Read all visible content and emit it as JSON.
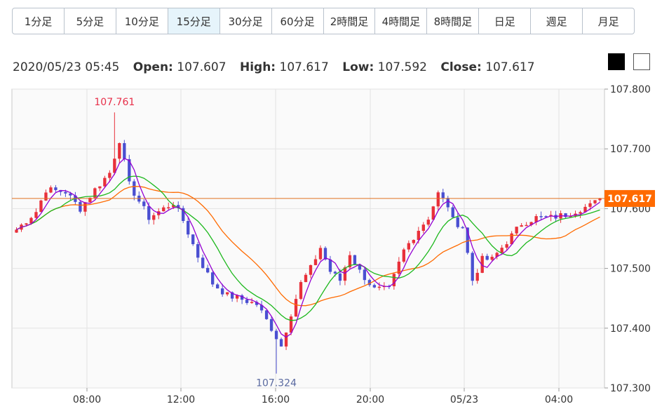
{
  "timeframe_tabs": [
    {
      "label": "1分足"
    },
    {
      "label": "5分足"
    },
    {
      "label": "10分足"
    },
    {
      "label": "15分足"
    },
    {
      "label": "30分足"
    },
    {
      "label": "60分足"
    },
    {
      "label": "2時間足"
    },
    {
      "label": "4時間足"
    },
    {
      "label": "8時間足"
    },
    {
      "label": "日足"
    },
    {
      "label": "週足"
    },
    {
      "label": "月足"
    }
  ],
  "active_tab": "15分足",
  "ohlc_header": {
    "datetime": "2020/05/23 05:45",
    "open_label": "Open:",
    "open": "107.607",
    "high_label": "High:",
    "high": "107.617",
    "low_label": "Low:",
    "low": "107.592",
    "close_label": "Close:",
    "close": "107.617"
  },
  "theme_swatches": [
    {
      "name": "dark",
      "color": "#000000"
    },
    {
      "name": "light",
      "color": "#ffffff"
    }
  ],
  "chart_data": {
    "type": "candlestick",
    "title": "",
    "ylim": [
      107.3,
      107.8
    ],
    "y_ticks": [
      "107.800",
      "107.700",
      "107.600",
      "107.500",
      "107.400",
      "107.300"
    ],
    "x_ticks": [
      "08:00",
      "12:00",
      "16:00",
      "20:00",
      "05/23",
      "04:00"
    ],
    "grid": true,
    "current_price": "107.617",
    "max_label": "107.761",
    "min_label": "107.324",
    "colors": {
      "up": "#e8303a",
      "down": "#4a4fd1",
      "ma_short": "#9400d3",
      "ma_mid": "#1db81d",
      "ma_long": "#ff6a00",
      "price_line": "#e07020",
      "price_tag": "#ff6a00",
      "max_label": "#e8304a",
      "min_label": "#5a6aa0"
    },
    "series_hint": "three moving averages (short, medium, long)"
  }
}
